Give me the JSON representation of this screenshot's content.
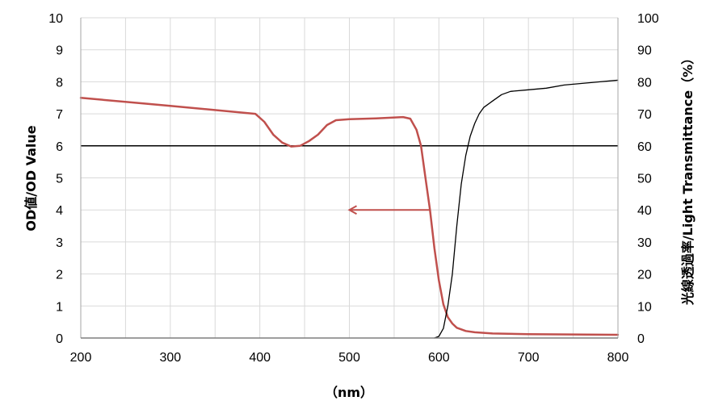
{
  "chart_data": {
    "type": "line",
    "xlabel": "（nm）",
    "ylabel_left": "OD値/OD Value",
    "ylabel_right": "光線透過率/Light Transmittance（%）",
    "xlim": [
      200,
      800
    ],
    "ylim_left": [
      0,
      10
    ],
    "ylim_right": [
      0,
      100
    ],
    "x_ticks": [
      "200",
      "300",
      "400",
      "500",
      "600",
      "700",
      "800"
    ],
    "y_ticks_left": [
      "0",
      "1",
      "2",
      "3",
      "4",
      "5",
      "6",
      "7",
      "8",
      "9",
      "10"
    ],
    "y_ticks_right": [
      "0",
      "10",
      "20",
      "30",
      "40",
      "50",
      "60",
      "70",
      "80",
      "90",
      "100"
    ],
    "grid": true,
    "reference_line": {
      "axis": "left",
      "value": 6,
      "color": "#000000"
    },
    "annotation_arrow": {
      "from_x": 590,
      "to_x": 500,
      "y": 4,
      "direction": "left",
      "color": "#c0504d"
    },
    "series": [
      {
        "axis": "left",
        "color": "#c0504d",
        "points": [
          [
            200,
            7.5
          ],
          [
            300,
            7.25
          ],
          [
            395,
            7.0
          ],
          [
            405,
            6.75
          ],
          [
            415,
            6.35
          ],
          [
            425,
            6.1
          ],
          [
            435,
            5.98
          ],
          [
            445,
            6.0
          ],
          [
            455,
            6.15
          ],
          [
            465,
            6.35
          ],
          [
            475,
            6.65
          ],
          [
            485,
            6.8
          ],
          [
            500,
            6.83
          ],
          [
            530,
            6.86
          ],
          [
            560,
            6.9
          ],
          [
            568,
            6.85
          ],
          [
            575,
            6.5
          ],
          [
            580,
            6.0
          ],
          [
            585,
            5.0
          ],
          [
            590,
            4.0
          ],
          [
            595,
            2.8
          ],
          [
            600,
            1.8
          ],
          [
            605,
            1.05
          ],
          [
            610,
            0.65
          ],
          [
            615,
            0.45
          ],
          [
            620,
            0.32
          ],
          [
            630,
            0.22
          ],
          [
            640,
            0.18
          ],
          [
            660,
            0.14
          ],
          [
            700,
            0.12
          ],
          [
            750,
            0.11
          ],
          [
            800,
            0.1
          ]
        ]
      },
      {
        "axis": "right",
        "color": "#000000",
        "points": [
          [
            595,
            0
          ],
          [
            600,
            0.5
          ],
          [
            605,
            3
          ],
          [
            610,
            10
          ],
          [
            615,
            20
          ],
          [
            620,
            35
          ],
          [
            625,
            48
          ],
          [
            630,
            57
          ],
          [
            635,
            63
          ],
          [
            640,
            67
          ],
          [
            645,
            70
          ],
          [
            650,
            72
          ],
          [
            660,
            74
          ],
          [
            670,
            76
          ],
          [
            680,
            77
          ],
          [
            700,
            77.5
          ],
          [
            720,
            78
          ],
          [
            740,
            79
          ],
          [
            760,
            79.5
          ],
          [
            780,
            80
          ],
          [
            800,
            80.5
          ]
        ]
      }
    ]
  }
}
